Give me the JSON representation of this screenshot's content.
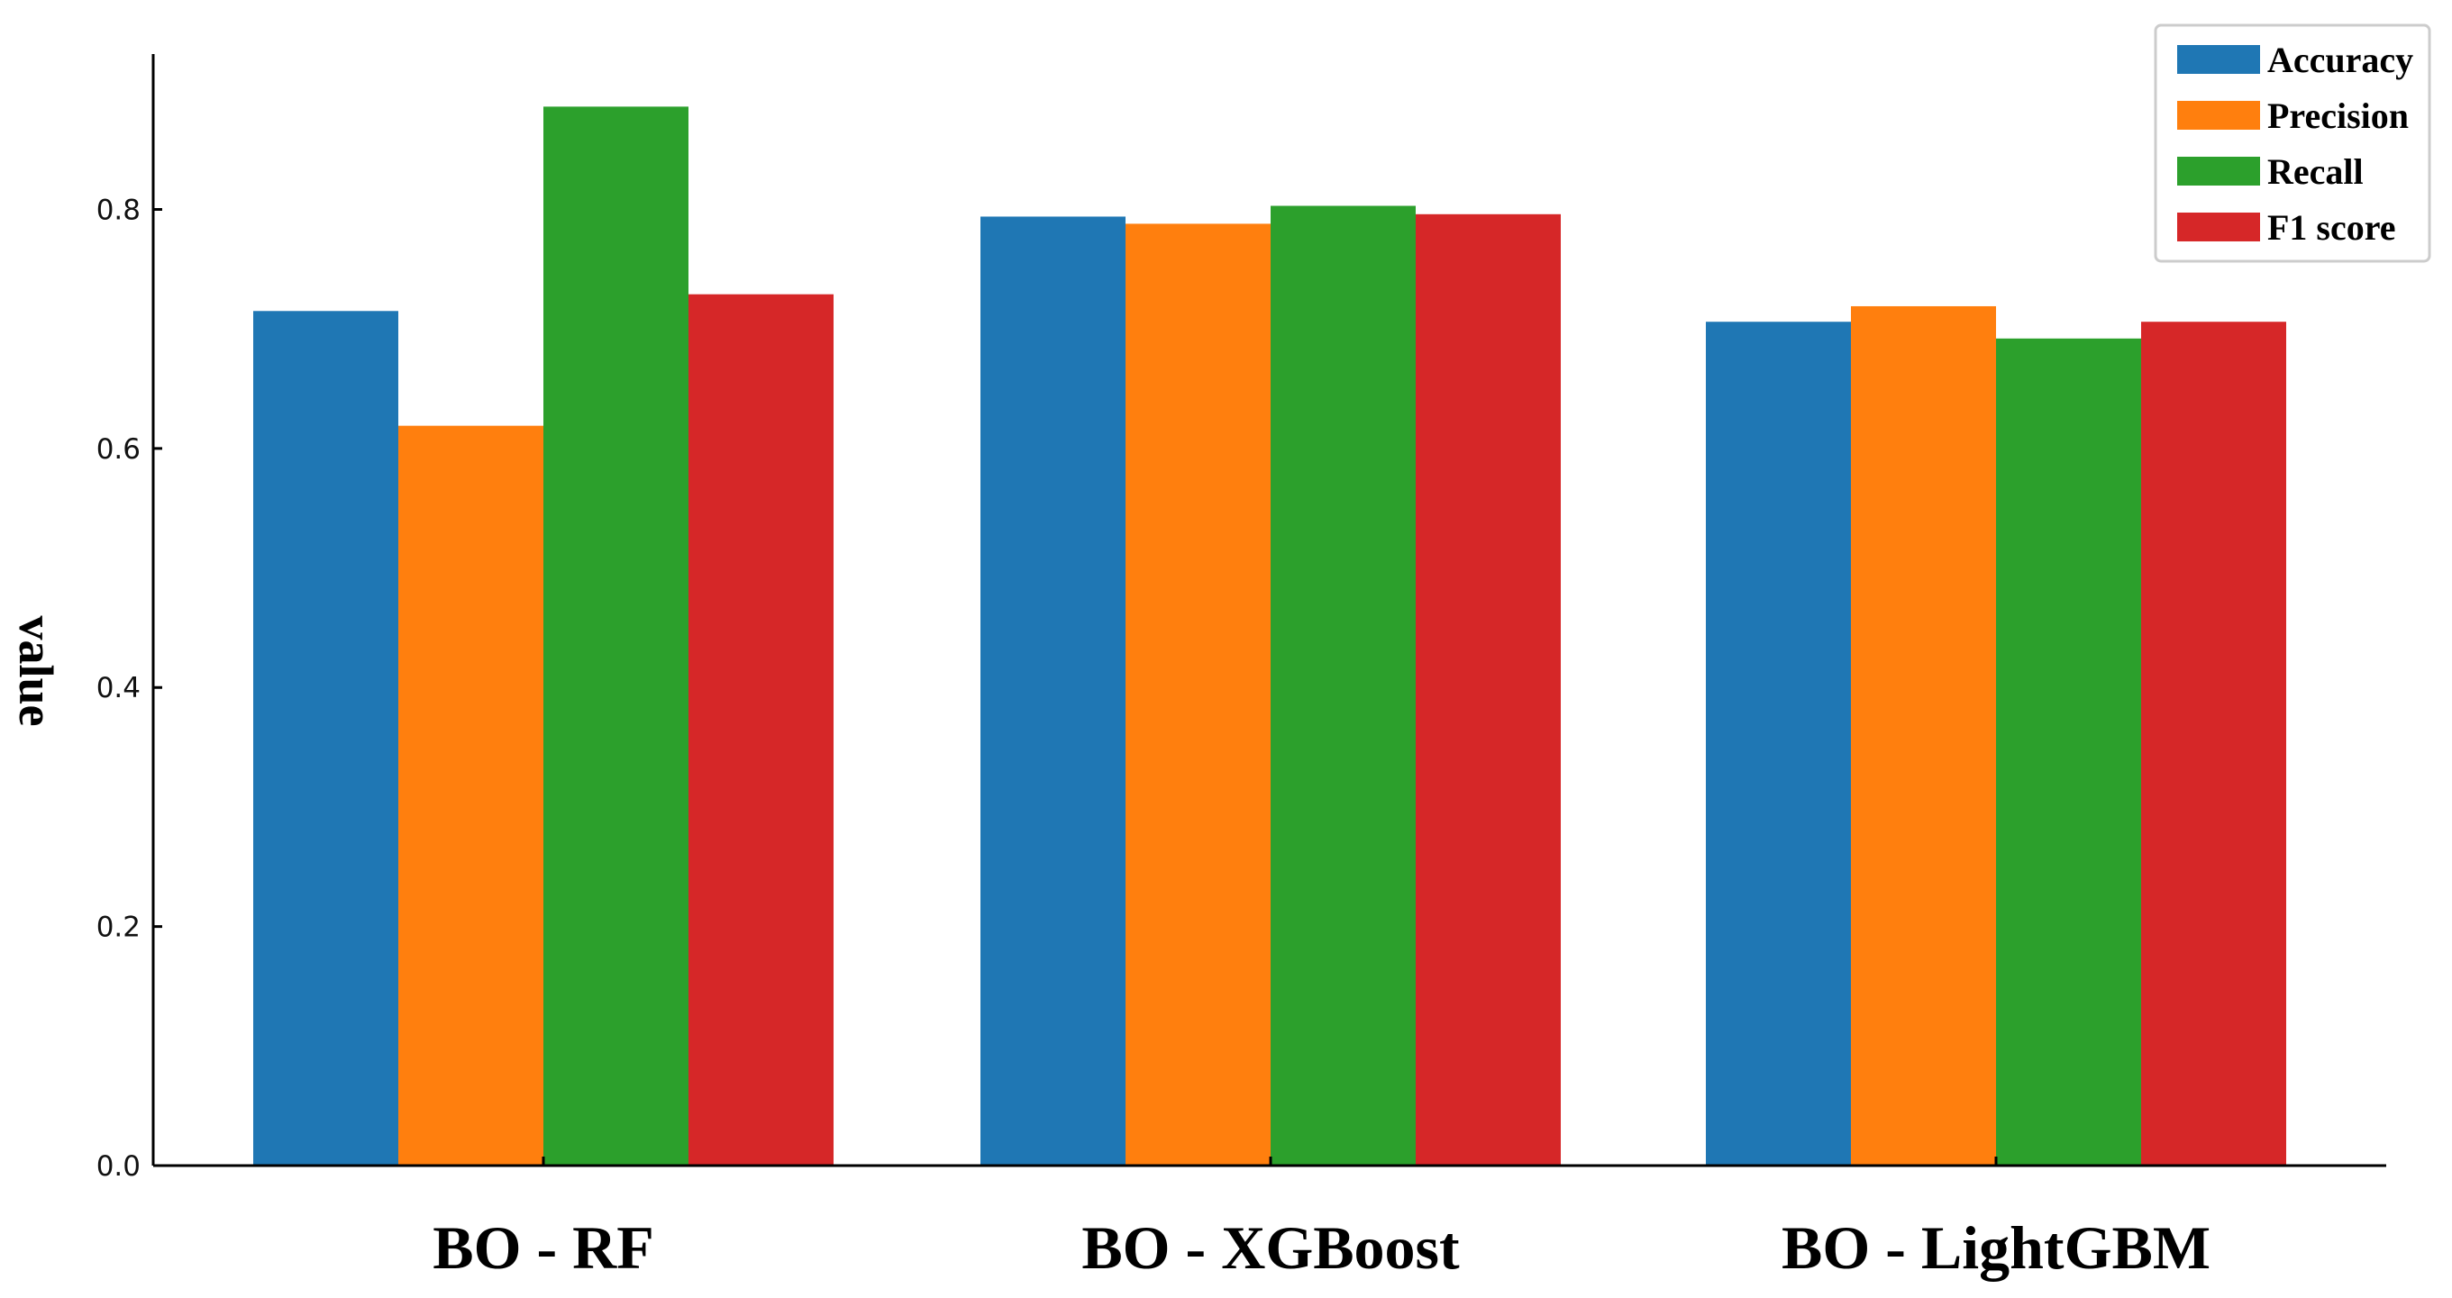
{
  "chart_data": {
    "type": "bar",
    "categories": [
      "BO - RF",
      "BO - XGBoost",
      "BO - LightGBM"
    ],
    "series": [
      {
        "name": "Accuracy",
        "color": "#1f77b4",
        "values": [
          0.715,
          0.794,
          0.706
        ]
      },
      {
        "name": "Precision",
        "color": "#ff7f0e",
        "values": [
          0.619,
          0.788,
          0.719
        ]
      },
      {
        "name": "Recall",
        "color": "#2ca02c",
        "values": [
          0.886,
          0.803,
          0.692
        ]
      },
      {
        "name": "F1 score",
        "color": "#d62728",
        "values": [
          0.729,
          0.796,
          0.706
        ]
      }
    ],
    "title": "",
    "xlabel": "",
    "ylabel": "value",
    "ylim": [
      0,
      0.93
    ],
    "yticks": [
      "0.0",
      "0.2",
      "0.4",
      "0.6",
      "0.8"
    ],
    "grid": false,
    "legend_position": "top-right"
  }
}
